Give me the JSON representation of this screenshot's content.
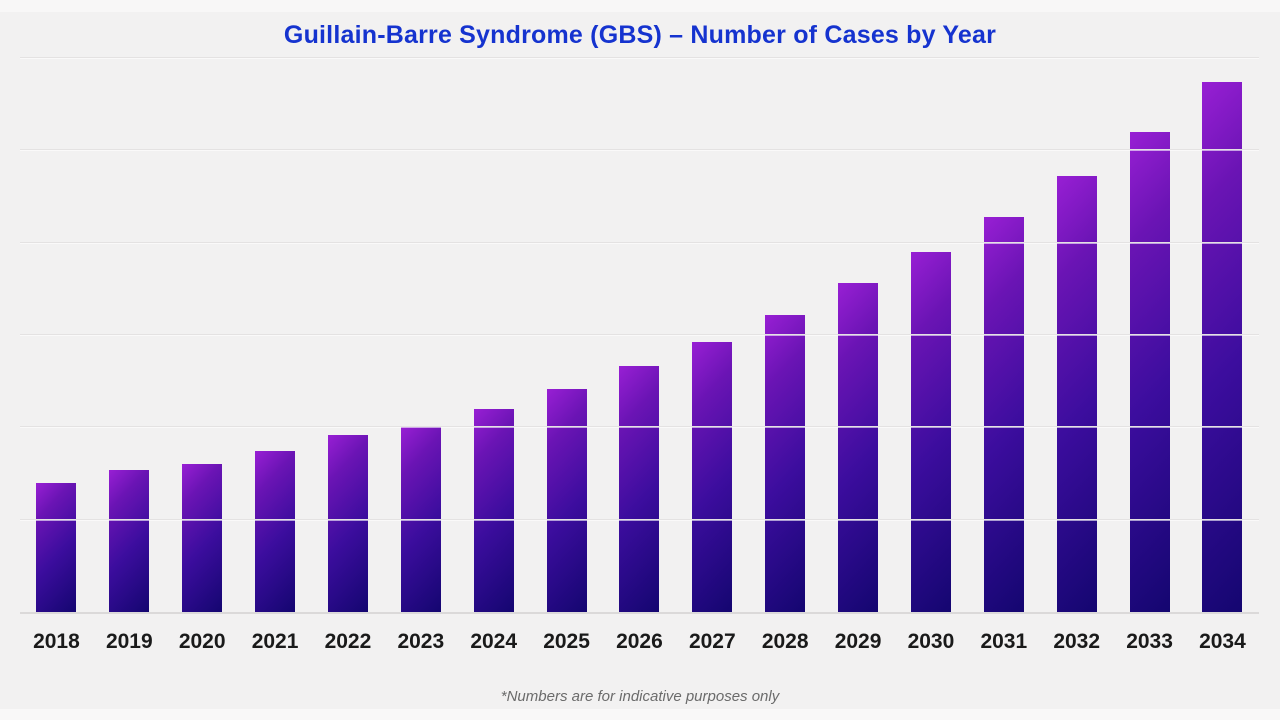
{
  "title": "Guillain-Barre Syndrome (GBS) – Number of Cases by Year",
  "footnote": "*Numbers are for indicative purposes only",
  "colors": {
    "title": "#1533cf",
    "background": "#f2f1f1",
    "gridline": "#e4e2e2",
    "axis_line": "#dbd9d9",
    "x_label": "#1a1a1a",
    "footnote": "#6b6b6b",
    "bar_gradient_top_left": "#981fd4",
    "bar_gradient_upper_mid": "#6a14b4",
    "bar_gradient_mid": "#3c0d9e",
    "bar_gradient_bottom_right": "#140670"
  },
  "chart_data": {
    "type": "bar",
    "title": "Guillain-Barre Syndrome (GBS) – Number of Cases by Year",
    "footnote": "*Numbers are for indicative purposes only",
    "categories": [
      "2018",
      "2019",
      "2020",
      "2021",
      "2022",
      "2023",
      "2024",
      "2025",
      "2026",
      "2027",
      "2028",
      "2029",
      "2030",
      "2031",
      "2032",
      "2033",
      "2034"
    ],
    "values": [
      70,
      77,
      80,
      87,
      96,
      100,
      110,
      121,
      133,
      146,
      161,
      178,
      195,
      214,
      236,
      260,
      287
    ],
    "xlabel": "",
    "ylabel": "",
    "ylim": [
      0,
      300
    ],
    "gridline_step": 50,
    "grid": true,
    "y_tick_labels_visible": false,
    "legend_position": "none"
  }
}
